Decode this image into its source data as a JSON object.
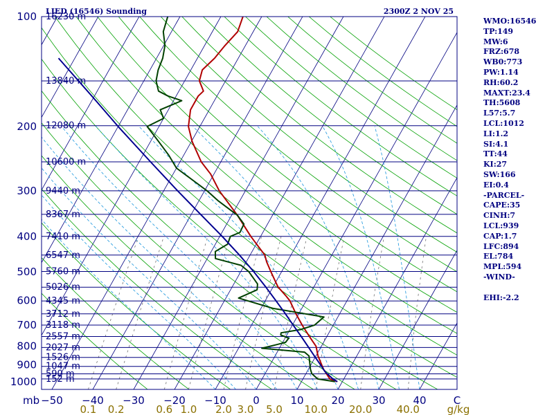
{
  "chart_data": {
    "type": "line",
    "title": "LIED (16546) Sounding",
    "time_label": "2300Z  2 NOV 25",
    "pressure_unit_label": "mb",
    "mixing_ratio_unit_label": "g/kg",
    "pressure_ticks": [
      {
        "p": 1000,
        "label": "1000"
      },
      {
        "p": 900,
        "label": "900"
      },
      {
        "p": 800,
        "label": "800"
      },
      {
        "p": 700,
        "label": "700"
      },
      {
        "p": 600,
        "label": "600"
      },
      {
        "p": 500,
        "label": "500"
      },
      {
        "p": 400,
        "label": "400"
      },
      {
        "p": 300,
        "label": "300"
      },
      {
        "p": 200,
        "label": "200"
      },
      {
        "p": 100,
        "label": "100"
      }
    ],
    "temperature_ticks": [
      -50,
      -40,
      -30,
      -20,
      -10,
      0,
      10,
      20,
      30,
      40
    ],
    "temperature_tick_labels": [
      "−50",
      "−40",
      "−30",
      "−20",
      "−10",
      "0",
      "10",
      "20",
      "30",
      "40"
    ],
    "temperature_range_c": [
      -50,
      50
    ],
    "pressure_range_mb": [
      100,
      1050
    ],
    "height_levels": [
      {
        "p": 983,
        "label": "152 m"
      },
      {
        "p": 952,
        "label": "590 m"
      },
      {
        "p": 908,
        "label": "1047 m"
      },
      {
        "p": 858,
        "label": "1526 m"
      },
      {
        "p": 806,
        "label": "2027 m"
      },
      {
        "p": 752,
        "label": "2557 m"
      },
      {
        "p": 700,
        "label": "3118 m"
      },
      {
        "p": 652,
        "label": "3712 m"
      },
      {
        "p": 601,
        "label": "4345 m"
      },
      {
        "p": 551,
        "label": "5026 m"
      },
      {
        "p": 499,
        "label": "5760 m"
      },
      {
        "p": 450,
        "label": "6547 m"
      },
      {
        "p": 400,
        "label": "7410 m"
      },
      {
        "p": 348,
        "label": "8367 m"
      },
      {
        "p": 300,
        "label": "9440 m"
      },
      {
        "p": 250,
        "label": "10600 m"
      },
      {
        "p": 199,
        "label": "12080 m"
      },
      {
        "p": 150,
        "label": "13840 m"
      },
      {
        "p": 100,
        "label": "16230 m"
      }
    ],
    "mixing_ratio_lines": [
      {
        "w": 0.1,
        "label": "0.1"
      },
      {
        "w": 0.2,
        "label": "0.2"
      },
      {
        "w": 0.6,
        "label": "0.6"
      },
      {
        "w": 1.0,
        "label": "1.0"
      },
      {
        "w": 2.0,
        "label": "2.0"
      },
      {
        "w": 3.0,
        "label": "3.0"
      },
      {
        "w": 5.0,
        "label": "5.0"
      },
      {
        "w": 10.0,
        "label": "10.0"
      },
      {
        "w": 20.0,
        "label": "20.0"
      },
      {
        "w": 40.0,
        "label": "40.0"
      }
    ],
    "series": [
      {
        "name": "temperature",
        "color": "#b00000",
        "points": [
          [
            1000,
            18.8
          ],
          [
            983,
            16.6
          ],
          [
            925,
            13.7
          ],
          [
            850,
            10.5
          ],
          [
            800,
            8.7
          ],
          [
            750,
            5.6
          ],
          [
            700,
            2.4
          ],
          [
            650,
            -0.8
          ],
          [
            600,
            -4.0
          ],
          [
            580,
            -5.8
          ],
          [
            550,
            -8.8
          ],
          [
            500,
            -12.6
          ],
          [
            470,
            -15.0
          ],
          [
            450,
            -16.4
          ],
          [
            400,
            -22.4
          ],
          [
            350,
            -28.6
          ],
          [
            300,
            -36.4
          ],
          [
            270,
            -40.8
          ],
          [
            250,
            -44.8
          ],
          [
            220,
            -49.8
          ],
          [
            200,
            -52.8
          ],
          [
            180,
            -54.6
          ],
          [
            165,
            -54.6
          ],
          [
            160,
            -54.0
          ],
          [
            150,
            -56.4
          ],
          [
            140,
            -57.2
          ],
          [
            130,
            -55.8
          ],
          [
            120,
            -55.0
          ],
          [
            110,
            -53.8
          ],
          [
            100,
            -54.6
          ]
        ]
      },
      {
        "name": "dewpoint",
        "color": "#004000",
        "points": [
          [
            1000,
            18.2
          ],
          [
            983,
            13.6
          ],
          [
            950,
            11.4
          ],
          [
            925,
            10.5
          ],
          [
            850,
            8.3
          ],
          [
            830,
            6.7
          ],
          [
            810,
            -4.3
          ],
          [
            790,
            -0.9
          ],
          [
            780,
            0.7
          ],
          [
            760,
            0.9
          ],
          [
            745,
            -1.5
          ],
          [
            735,
            -1.7
          ],
          [
            720,
            2.6
          ],
          [
            700,
            5.4
          ],
          [
            665,
            6.6
          ],
          [
            630,
            -7.0
          ],
          [
            590,
            -16.9
          ],
          [
            560,
            -13.5
          ],
          [
            540,
            -14.2
          ],
          [
            500,
            -18.0
          ],
          [
            480,
            -20.8
          ],
          [
            460,
            -28.0
          ],
          [
            440,
            -29.0
          ],
          [
            420,
            -27.0
          ],
          [
            400,
            -27.4
          ],
          [
            390,
            -25.6
          ],
          [
            370,
            -25.8
          ],
          [
            350,
            -28.6
          ],
          [
            320,
            -35.2
          ],
          [
            300,
            -39.4
          ],
          [
            280,
            -44.5
          ],
          [
            260,
            -50.0
          ],
          [
            240,
            -53.6
          ],
          [
            220,
            -58.0
          ],
          [
            200,
            -62.9
          ],
          [
            190,
            -60.0
          ],
          [
            180,
            -62.0
          ],
          [
            170,
            -58.0
          ],
          [
            165,
            -62.0
          ],
          [
            160,
            -65.0
          ],
          [
            150,
            -67.0
          ],
          [
            140,
            -68.0
          ],
          [
            130,
            -68.5
          ],
          [
            120,
            -69.7
          ],
          [
            110,
            -72.0
          ],
          [
            100,
            -73.0
          ]
        ]
      },
      {
        "name": "parcel",
        "color": "#000090",
        "points": [
          [
            1000,
            18.8
          ],
          [
            983,
            17.3
          ],
          [
            939,
            14.4
          ],
          [
            900,
            12.4
          ],
          [
            850,
            9.6
          ],
          [
            800,
            6.7
          ],
          [
            750,
            3.6
          ],
          [
            700,
            0.2
          ],
          [
            650,
            -3.4
          ],
          [
            600,
            -7.4
          ],
          [
            550,
            -11.8
          ],
          [
            500,
            -16.8
          ],
          [
            450,
            -22.6
          ],
          [
            400,
            -29.4
          ],
          [
            350,
            -37.4
          ],
          [
            300,
            -46.6
          ],
          [
            250,
            -57.2
          ],
          [
            200,
            -70.0
          ],
          [
            170,
            -79.0
          ],
          [
            150,
            -86.0
          ],
          [
            130,
            -94.0
          ]
        ]
      }
    ]
  },
  "indices": [
    "WMO:16546",
    "TP:149",
    "MW:6",
    "FRZ:678",
    "WB0:773",
    "PW:1.14",
    "RH:60.2",
    "MAXT:23.4",
    "TH:5608",
    "L57:5.7",
    "LCL:1012",
    "LI:1.2",
    "SI:4.1",
    "TT:44",
    "KI:27",
    "SW:166",
    "EI:0.4",
    "-PARCEL-",
    "CAPE:35",
    "CINH:7",
    "LCL:939",
    "CAP:1.7",
    "LFC:894",
    "EL:784",
    "MPL:594",
    "-WIND-",
    "",
    "EHI:-2.2"
  ],
  "colors": {
    "background": "#ffffff",
    "frame": "#000080",
    "isobar": "#000080",
    "isotherm": "#000080",
    "dry_adiabat": "#00a000",
    "moist_adiabat": "#30a0e0",
    "mixing_ratio": "#707070",
    "label_blue": "#000080",
    "label_mixing": "#8a7000"
  }
}
